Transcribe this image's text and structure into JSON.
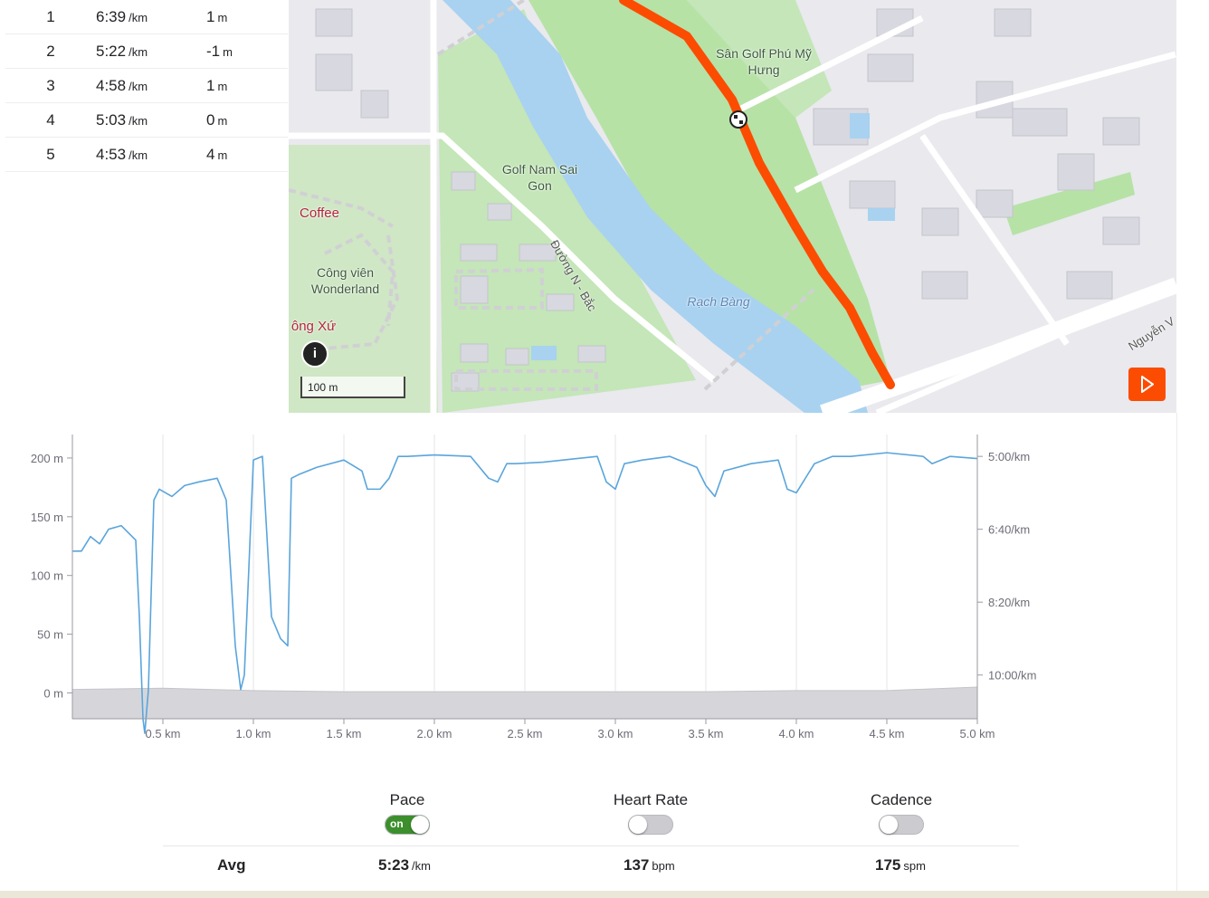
{
  "splits": [
    {
      "km": "1",
      "pace": "6:39",
      "pace_unit": "/km",
      "elev": "1",
      "elev_unit": "m"
    },
    {
      "km": "2",
      "pace": "5:22",
      "pace_unit": "/km",
      "elev": "-1",
      "elev_unit": "m"
    },
    {
      "km": "3",
      "pace": "4:58",
      "pace_unit": "/km",
      "elev": "1",
      "elev_unit": "m"
    },
    {
      "km": "4",
      "pace": "5:03",
      "pace_unit": "/km",
      "elev": "0",
      "elev_unit": "m"
    },
    {
      "km": "5",
      "pace": "4:53",
      "pace_unit": "/km",
      "elev": "4",
      "elev_unit": "m"
    }
  ],
  "map": {
    "labels": {
      "golf_phu_my_1": "Sân Golf Phú Mỹ",
      "golf_phu_my_2": "Hưng",
      "golf_nam_sai_1": "Golf Nam Sai",
      "golf_nam_sai_2": "Gon",
      "coffee": "Coffee",
      "cong_vien_1": "Công viên",
      "cong_vien_2": "Wonderland",
      "ong_xu": "ông Xứ",
      "duong": "Đường N - Bắc",
      "rach_bang": "Rạch Bàng",
      "nguyen": "Nguyễn V"
    },
    "info_label": "i",
    "scale_label": "100 m",
    "route_color": "#fc4c02"
  },
  "chart_data": {
    "type": "line",
    "title": "",
    "xlabel": "",
    "ylabel": "",
    "x_ticks": [
      "0.5 km",
      "1.0 km",
      "1.5 km",
      "2.0 km",
      "2.5 km",
      "3.0 km",
      "3.5 km",
      "4.0 km",
      "4.5 km",
      "5.0 km"
    ],
    "x_tick_values": [
      0.5,
      1.0,
      1.5,
      2.0,
      2.5,
      3.0,
      3.5,
      4.0,
      4.5,
      5.0
    ],
    "xlim": [
      0,
      5.0
    ],
    "y_left_ticks": [
      "200 m",
      "150 m",
      "100 m",
      "50 m",
      "0 m"
    ],
    "y_left_tick_values": [
      200,
      150,
      100,
      50,
      0
    ],
    "ylim_left": [
      -22,
      220
    ],
    "y_right_ticks": [
      "5:00/km",
      "6:40/km",
      "8:20/km",
      "10:00/km"
    ],
    "y_right_tick_values": [
      300,
      400,
      500,
      600
    ],
    "ylim_right": [
      270,
      660
    ],
    "series": [
      {
        "name": "Pace",
        "unit": "sec/km",
        "color": "#5aa5dc",
        "x": [
          0.0,
          0.05,
          0.1,
          0.15,
          0.2,
          0.27,
          0.35,
          0.37,
          0.39,
          0.4,
          0.42,
          0.45,
          0.48,
          0.55,
          0.62,
          0.7,
          0.8,
          0.85,
          0.9,
          0.93,
          0.95,
          1.0,
          1.05,
          1.1,
          1.15,
          1.19,
          1.21,
          1.25,
          1.35,
          1.5,
          1.6,
          1.63,
          1.7,
          1.75,
          1.8,
          1.85,
          2.0,
          2.2,
          2.3,
          2.35,
          2.4,
          2.45,
          2.6,
          2.9,
          2.95,
          3.0,
          3.05,
          3.15,
          3.3,
          3.45,
          3.5,
          3.55,
          3.6,
          3.75,
          3.9,
          3.95,
          4.0,
          4.1,
          4.15,
          4.2,
          4.3,
          4.5,
          4.7,
          4.75,
          4.85,
          5.0
        ],
        "values": [
          430,
          430,
          410,
          420,
          400,
          395,
          415,
          520,
          660,
          680,
          620,
          360,
          345,
          355,
          340,
          335,
          330,
          360,
          560,
          620,
          600,
          305,
          300,
          520,
          550,
          560,
          330,
          325,
          315,
          305,
          320,
          345,
          345,
          330,
          300,
          300,
          298,
          300,
          330,
          335,
          310,
          310,
          308,
          300,
          335,
          345,
          310,
          305,
          300,
          315,
          340,
          355,
          320,
          310,
          305,
          345,
          350,
          310,
          305,
          300,
          300,
          295,
          300,
          310,
          300,
          303
        ]
      },
      {
        "name": "Elevation",
        "unit": "m",
        "color": "#d6d6da",
        "x": [
          0.0,
          0.5,
          1.0,
          1.5,
          2.0,
          2.5,
          3.0,
          3.5,
          4.0,
          4.5,
          5.0
        ],
        "values": [
          3,
          4,
          2,
          1,
          1,
          1,
          1,
          1,
          2,
          2,
          5
        ]
      }
    ]
  },
  "stats": {
    "pace": {
      "label": "Pace",
      "toggle_text": "on",
      "avg": "5:23",
      "avg_unit": "/km"
    },
    "heart_rate": {
      "label": "Heart Rate",
      "avg": "137",
      "avg_unit": "bpm"
    },
    "cadence": {
      "label": "Cadence",
      "avg": "175",
      "avg_unit": "spm"
    },
    "avg_label": "Avg"
  }
}
